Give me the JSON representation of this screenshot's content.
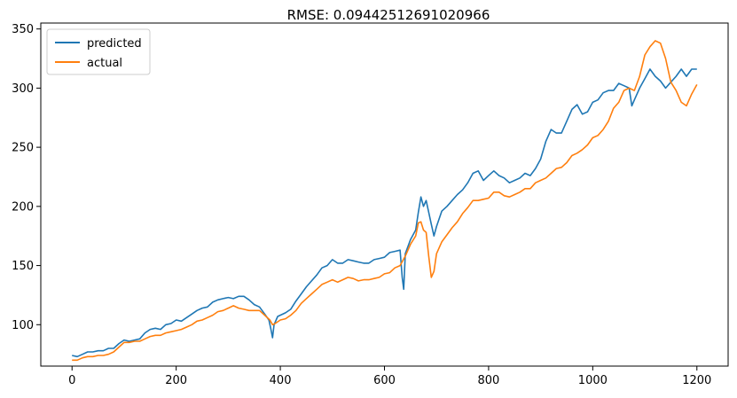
{
  "chart_data": {
    "type": "line",
    "title": "RMSE: 0.09442512691020966",
    "xlabel": "",
    "ylabel": "",
    "xlim": [
      -60,
      1260
    ],
    "ylim": [
      65,
      355
    ],
    "xticks": [
      0,
      200,
      400,
      600,
      800,
      1000,
      1200
    ],
    "yticks": [
      100,
      150,
      200,
      250,
      300,
      350
    ],
    "grid": false,
    "legend_position": "top-left",
    "series": [
      {
        "name": "predicted",
        "color": "#1f77b4",
        "points": [
          [
            0,
            74
          ],
          [
            10,
            73
          ],
          [
            20,
            75
          ],
          [
            30,
            77
          ],
          [
            40,
            77
          ],
          [
            50,
            78
          ],
          [
            60,
            78
          ],
          [
            70,
            80
          ],
          [
            80,
            80
          ],
          [
            90,
            84
          ],
          [
            100,
            87
          ],
          [
            110,
            86
          ],
          [
            120,
            87
          ],
          [
            130,
            88
          ],
          [
            140,
            93
          ],
          [
            150,
            96
          ],
          [
            160,
            97
          ],
          [
            170,
            96
          ],
          [
            180,
            100
          ],
          [
            190,
            101
          ],
          [
            200,
            104
          ],
          [
            210,
            103
          ],
          [
            220,
            106
          ],
          [
            230,
            109
          ],
          [
            240,
            112
          ],
          [
            250,
            114
          ],
          [
            260,
            115
          ],
          [
            270,
            119
          ],
          [
            280,
            121
          ],
          [
            290,
            122
          ],
          [
            300,
            123
          ],
          [
            310,
            122
          ],
          [
            320,
            124
          ],
          [
            330,
            124
          ],
          [
            340,
            121
          ],
          [
            350,
            117
          ],
          [
            360,
            115
          ],
          [
            370,
            109
          ],
          [
            378,
            104
          ],
          [
            382,
            96
          ],
          [
            385,
            89
          ],
          [
            388,
            100
          ],
          [
            395,
            107
          ],
          [
            410,
            110
          ],
          [
            420,
            113
          ],
          [
            430,
            120
          ],
          [
            440,
            126
          ],
          [
            450,
            132
          ],
          [
            460,
            137
          ],
          [
            470,
            142
          ],
          [
            480,
            148
          ],
          [
            490,
            150
          ],
          [
            500,
            155
          ],
          [
            510,
            152
          ],
          [
            520,
            152
          ],
          [
            530,
            155
          ],
          [
            540,
            154
          ],
          [
            550,
            153
          ],
          [
            560,
            152
          ],
          [
            570,
            152
          ],
          [
            580,
            155
          ],
          [
            590,
            156
          ],
          [
            600,
            157
          ],
          [
            610,
            161
          ],
          [
            620,
            162
          ],
          [
            630,
            163
          ],
          [
            634,
            140
          ],
          [
            637,
            130
          ],
          [
            640,
            160
          ],
          [
            650,
            172
          ],
          [
            660,
            180
          ],
          [
            665,
            195
          ],
          [
            670,
            208
          ],
          [
            675,
            200
          ],
          [
            680,
            205
          ],
          [
            685,
            195
          ],
          [
            690,
            185
          ],
          [
            695,
            175
          ],
          [
            700,
            183
          ],
          [
            710,
            196
          ],
          [
            720,
            200
          ],
          [
            730,
            205
          ],
          [
            740,
            210
          ],
          [
            750,
            214
          ],
          [
            760,
            220
          ],
          [
            770,
            228
          ],
          [
            780,
            230
          ],
          [
            790,
            222
          ],
          [
            800,
            226
          ],
          [
            810,
            230
          ],
          [
            820,
            226
          ],
          [
            830,
            224
          ],
          [
            840,
            220
          ],
          [
            850,
            222
          ],
          [
            860,
            224
          ],
          [
            870,
            228
          ],
          [
            880,
            226
          ],
          [
            890,
            232
          ],
          [
            900,
            240
          ],
          [
            910,
            255
          ],
          [
            920,
            265
          ],
          [
            930,
            262
          ],
          [
            940,
            262
          ],
          [
            950,
            272
          ],
          [
            960,
            282
          ],
          [
            970,
            286
          ],
          [
            980,
            278
          ],
          [
            990,
            280
          ],
          [
            1000,
            288
          ],
          [
            1010,
            290
          ],
          [
            1020,
            296
          ],
          [
            1030,
            298
          ],
          [
            1040,
            298
          ],
          [
            1050,
            304
          ],
          [
            1060,
            302
          ],
          [
            1070,
            300
          ],
          [
            1075,
            285
          ],
          [
            1080,
            290
          ],
          [
            1090,
            300
          ],
          [
            1100,
            308
          ],
          [
            1110,
            316
          ],
          [
            1120,
            310
          ],
          [
            1130,
            306
          ],
          [
            1140,
            300
          ],
          [
            1150,
            305
          ],
          [
            1160,
            310
          ],
          [
            1170,
            316
          ],
          [
            1180,
            310
          ],
          [
            1190,
            316
          ],
          [
            1200,
            316
          ]
        ]
      },
      {
        "name": "actual",
        "color": "#ff7f0e",
        "points": [
          [
            0,
            70
          ],
          [
            10,
            70
          ],
          [
            20,
            72
          ],
          [
            30,
            73
          ],
          [
            40,
            73
          ],
          [
            50,
            74
          ],
          [
            60,
            74
          ],
          [
            70,
            75
          ],
          [
            80,
            77
          ],
          [
            90,
            81
          ],
          [
            100,
            85
          ],
          [
            110,
            85
          ],
          [
            120,
            86
          ],
          [
            130,
            86
          ],
          [
            140,
            88
          ],
          [
            150,
            90
          ],
          [
            160,
            91
          ],
          [
            170,
            91
          ],
          [
            180,
            93
          ],
          [
            190,
            94
          ],
          [
            200,
            95
          ],
          [
            210,
            96
          ],
          [
            220,
            98
          ],
          [
            230,
            100
          ],
          [
            240,
            103
          ],
          [
            250,
            104
          ],
          [
            260,
            106
          ],
          [
            270,
            108
          ],
          [
            280,
            111
          ],
          [
            290,
            112
          ],
          [
            300,
            114
          ],
          [
            310,
            116
          ],
          [
            320,
            114
          ],
          [
            330,
            113
          ],
          [
            340,
            112
          ],
          [
            350,
            112
          ],
          [
            360,
            112
          ],
          [
            370,
            108
          ],
          [
            380,
            104
          ],
          [
            385,
            100
          ],
          [
            390,
            101
          ],
          [
            400,
            104
          ],
          [
            410,
            105
          ],
          [
            420,
            108
          ],
          [
            430,
            112
          ],
          [
            440,
            118
          ],
          [
            450,
            122
          ],
          [
            460,
            126
          ],
          [
            470,
            130
          ],
          [
            480,
            134
          ],
          [
            490,
            136
          ],
          [
            500,
            138
          ],
          [
            510,
            136
          ],
          [
            520,
            138
          ],
          [
            530,
            140
          ],
          [
            540,
            139
          ],
          [
            550,
            137
          ],
          [
            560,
            138
          ],
          [
            570,
            138
          ],
          [
            580,
            139
          ],
          [
            590,
            140
          ],
          [
            600,
            143
          ],
          [
            610,
            144
          ],
          [
            620,
            148
          ],
          [
            630,
            150
          ],
          [
            640,
            158
          ],
          [
            650,
            168
          ],
          [
            660,
            175
          ],
          [
            665,
            186
          ],
          [
            670,
            187
          ],
          [
            675,
            180
          ],
          [
            680,
            178
          ],
          [
            685,
            158
          ],
          [
            690,
            140
          ],
          [
            695,
            145
          ],
          [
            700,
            160
          ],
          [
            710,
            170
          ],
          [
            720,
            176
          ],
          [
            730,
            182
          ],
          [
            740,
            187
          ],
          [
            750,
            194
          ],
          [
            760,
            199
          ],
          [
            770,
            205
          ],
          [
            780,
            205
          ],
          [
            790,
            206
          ],
          [
            800,
            207
          ],
          [
            810,
            212
          ],
          [
            820,
            212
          ],
          [
            830,
            209
          ],
          [
            840,
            208
          ],
          [
            850,
            210
          ],
          [
            860,
            212
          ],
          [
            870,
            215
          ],
          [
            880,
            215
          ],
          [
            890,
            220
          ],
          [
            900,
            222
          ],
          [
            910,
            224
          ],
          [
            920,
            228
          ],
          [
            930,
            232
          ],
          [
            940,
            233
          ],
          [
            950,
            237
          ],
          [
            960,
            243
          ],
          [
            970,
            245
          ],
          [
            980,
            248
          ],
          [
            990,
            252
          ],
          [
            1000,
            258
          ],
          [
            1010,
            260
          ],
          [
            1020,
            265
          ],
          [
            1030,
            272
          ],
          [
            1040,
            283
          ],
          [
            1050,
            288
          ],
          [
            1060,
            298
          ],
          [
            1070,
            300
          ],
          [
            1080,
            298
          ],
          [
            1090,
            310
          ],
          [
            1100,
            328
          ],
          [
            1110,
            335
          ],
          [
            1120,
            340
          ],
          [
            1130,
            338
          ],
          [
            1140,
            325
          ],
          [
            1150,
            305
          ],
          [
            1160,
            298
          ],
          [
            1170,
            288
          ],
          [
            1180,
            285
          ],
          [
            1190,
            295
          ],
          [
            1200,
            303
          ]
        ]
      }
    ]
  }
}
